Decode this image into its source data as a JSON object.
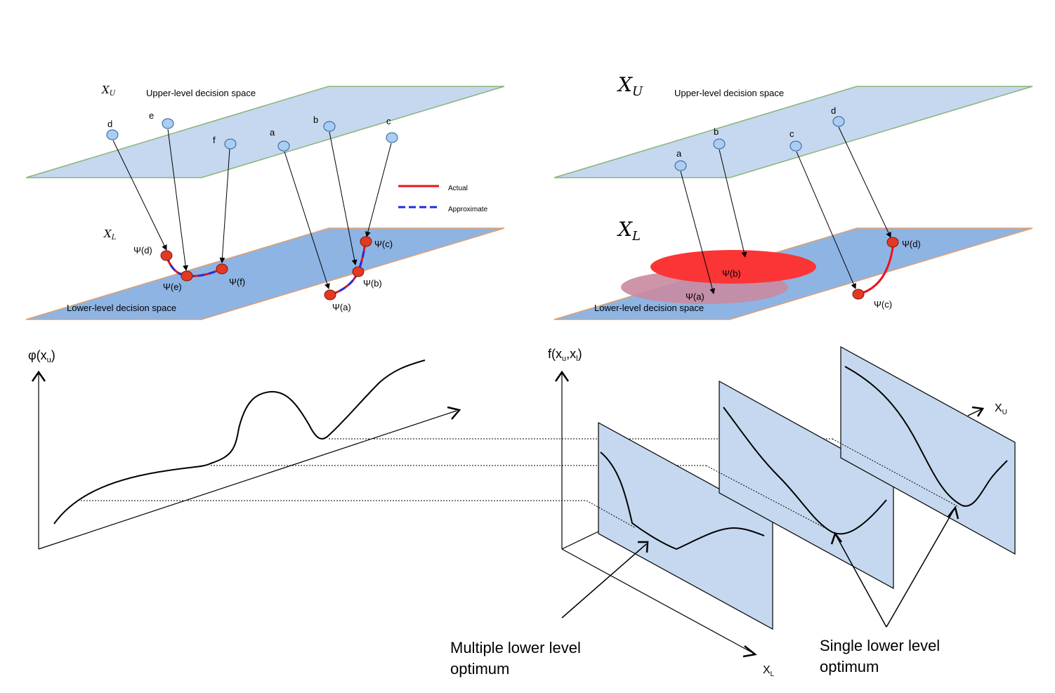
{
  "top_left": {
    "upper_var": "X_U",
    "upper_label": "Upper-level decision space",
    "lower_var": "X_L",
    "lower_label": "Lower-level decision space",
    "points": {
      "d": "d",
      "e": "e",
      "f": "f",
      "a": "a",
      "b": "b",
      "c": "c"
    },
    "psi": {
      "d": "Ψ(d)",
      "e": "Ψ(e)",
      "f": "Ψ(f)",
      "a": "Ψ(a)",
      "b": "Ψ(b)",
      "c": "Ψ(c)"
    },
    "legend": {
      "actual": "Actual",
      "approximate": "Approximate"
    }
  },
  "top_right": {
    "upper_var": "X_U",
    "upper_label": "Upper-level decision space",
    "lower_var": "X_L",
    "lower_label": "Lower-level decision space",
    "points": {
      "a": "a",
      "b": "b",
      "c": "c",
      "d": "d"
    },
    "psi": {
      "a": "Ψ(a)",
      "b": "Ψ(b)",
      "c": "Ψ(c)",
      "d": "Ψ(d)"
    }
  },
  "bottom_left": {
    "y_label_main": "φ(x",
    "y_label_sub": "u",
    "y_label_end": ")"
  },
  "bottom_right": {
    "f_label_main": "f(x",
    "f_sub_u": "u",
    "f_comma": ",x",
    "f_sub_l": "l",
    "f_end": ")",
    "xu_main": "X",
    "xu_sub": "U",
    "xl_main": "X",
    "xl_sub": "L",
    "multiple_line1": "Multiple lower level",
    "multiple_line2": "optimum",
    "single_line1": "Single lower level",
    "single_line2": "optimum"
  },
  "colors": {
    "upper_plane": "#c5d8ef",
    "lower_plane": "#8eb4e3",
    "node_blue": "#a9cdf5",
    "node_red": "#e23a22",
    "actual": "#e8131b",
    "approximate": "#1a2fe6",
    "panel": "#c5d8ef"
  }
}
